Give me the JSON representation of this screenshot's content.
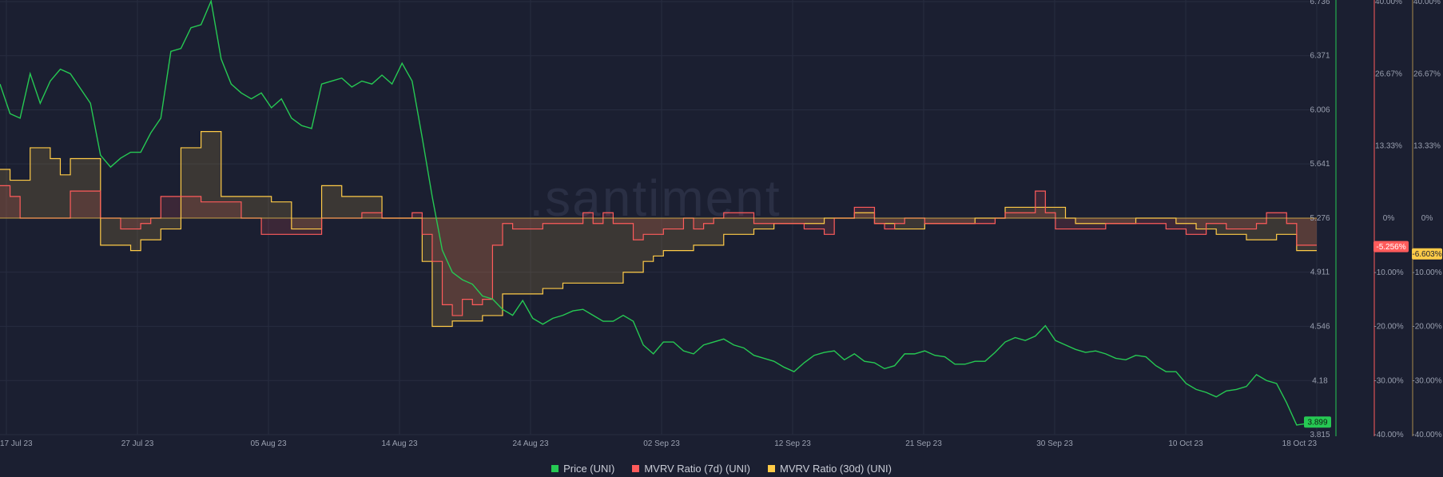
{
  "watermark": ".santiment",
  "legend": {
    "price": "Price (UNI)",
    "mvrv7": "MVRV Ratio (7d) (UNI)",
    "mvrv30": "MVRV Ratio (30d) (UNI)"
  },
  "colors": {
    "background": "#1b1f31",
    "price": "#26c953",
    "mvrv7": "#ff5b5b",
    "mvrv30": "#ffcb47",
    "grid": "#272c40"
  },
  "chart_data": {
    "type": "line",
    "x_tick_labels": [
      "17 Jul 23",
      "27 Jul 23",
      "05 Aug 23",
      "14 Aug 23",
      "24 Aug 23",
      "02 Sep 23",
      "12 Sep 23",
      "21 Sep 23",
      "30 Sep 23",
      "10 Oct 23",
      "18 Oct 23"
    ],
    "price_axis": {
      "ticks": [
        "6.736",
        "6.371",
        "6.006",
        "5.641",
        "5.276",
        "4.911",
        "4.546",
        "4.18",
        "3.815"
      ],
      "range": [
        3.815,
        6.736
      ],
      "current_label": "3.899"
    },
    "mvrv7_axis": {
      "ticks": [
        "40.00%",
        "26.67%",
        "13.33%",
        "0%",
        "-10.00%",
        "-20.00%",
        "-30.00%",
        "-40.00%"
      ],
      "current_label": "-5.256%"
    },
    "mvrv30_axis": {
      "ticks": [
        "40.00%",
        "26.67%",
        "13.33%",
        "0%",
        "-10.00%",
        "-20.00%",
        "-30.00%",
        "-40.00%"
      ],
      "current_label": "-6.603%"
    },
    "mvrv_range": [
      -40,
      40
    ],
    "series": [
      {
        "name": "Price (UNI)",
        "color": "#26c953",
        "values": [
          6.18,
          5.98,
          5.95,
          6.25,
          6.05,
          6.2,
          6.28,
          6.25,
          6.15,
          6.05,
          5.7,
          5.62,
          5.68,
          5.72,
          5.72,
          5.85,
          5.95,
          6.4,
          6.42,
          6.56,
          6.58,
          6.74,
          6.35,
          6.18,
          6.12,
          6.08,
          6.12,
          6.02,
          6.08,
          5.95,
          5.9,
          5.88,
          6.18,
          6.2,
          6.22,
          6.16,
          6.2,
          6.18,
          6.24,
          6.18,
          6.32,
          6.2,
          5.82,
          5.42,
          5.06,
          4.91,
          4.86,
          4.83,
          4.75,
          4.73,
          4.66,
          4.62,
          4.72,
          4.6,
          4.56,
          4.6,
          4.62,
          4.65,
          4.66,
          4.62,
          4.58,
          4.58,
          4.62,
          4.58,
          4.42,
          4.36,
          4.44,
          4.44,
          4.38,
          4.36,
          4.42,
          4.44,
          4.46,
          4.42,
          4.4,
          4.35,
          4.33,
          4.31,
          4.27,
          4.24,
          4.3,
          4.35,
          4.37,
          4.38,
          4.32,
          4.36,
          4.31,
          4.3,
          4.26,
          4.28,
          4.36,
          4.36,
          4.38,
          4.35,
          4.34,
          4.29,
          4.29,
          4.31,
          4.31,
          4.37,
          4.44,
          4.47,
          4.45,
          4.48,
          4.55,
          4.45,
          4.42,
          4.39,
          4.37,
          4.38,
          4.36,
          4.33,
          4.32,
          4.35,
          4.34,
          4.28,
          4.24,
          4.24,
          4.16,
          4.12,
          4.1,
          4.07,
          4.11,
          4.12,
          4.14,
          4.22,
          4.18,
          4.16,
          4.03,
          3.88,
          3.89,
          3.9
        ]
      },
      {
        "name": "MVRV Ratio (7d) (UNI)",
        "color": "#ff5b5b",
        "values": [
          6,
          4,
          0,
          0,
          0,
          0,
          0,
          5,
          5,
          5,
          0,
          0,
          -2,
          -2,
          -1,
          0,
          4,
          4,
          4,
          4,
          3,
          3,
          3,
          3,
          0,
          0,
          -3,
          -3,
          -3,
          -3,
          -3,
          -3,
          0,
          0,
          0,
          0,
          1,
          1,
          0,
          0,
          0,
          1,
          -3,
          -8,
          -16,
          -18,
          -15,
          -16,
          -15,
          -5,
          -1,
          -2,
          -2,
          -2,
          -1,
          -1,
          -1,
          -1,
          1,
          -1,
          1,
          -1,
          -1,
          -4,
          -3,
          -3,
          -2,
          -2,
          0,
          -2,
          -1,
          0,
          1,
          1,
          1,
          -1,
          -1,
          -1,
          -1,
          -1,
          -2,
          -2,
          -3,
          0,
          0,
          2,
          2,
          -1,
          -2,
          -1,
          0,
          0,
          -1,
          -1,
          -1,
          -1,
          -1,
          -1,
          -1,
          0,
          1,
          1,
          1,
          5,
          1,
          -2,
          -2,
          -2,
          -2,
          -2,
          -1,
          -1,
          -1,
          -1,
          -1,
          -1,
          -2,
          -2,
          -3,
          -3,
          -1,
          -1,
          -2,
          -2,
          -2,
          -1,
          1,
          1,
          -1,
          -5,
          -5,
          -5
        ]
      },
      {
        "name": "MVRV Ratio (30d) (UNI)",
        "color": "#ffcb47",
        "values": [
          9,
          7,
          7,
          13,
          13,
          11,
          8,
          11,
          11,
          11,
          -5,
          -5,
          -5,
          -6,
          -4,
          -4,
          -2,
          -2,
          13,
          13,
          16,
          16,
          4,
          4,
          4,
          4,
          4,
          3,
          3,
          -2,
          -2,
          -2,
          6,
          6,
          4,
          4,
          4,
          4,
          0,
          0,
          0,
          0,
          -8,
          -20,
          -20,
          -19,
          -19,
          -19,
          -18,
          -18,
          -14,
          -14,
          -14,
          -14,
          -13,
          -13,
          -12,
          -12,
          -12,
          -12,
          -12,
          -12,
          -10,
          -10,
          -8,
          -7,
          -6,
          -6,
          -6,
          -5,
          -5,
          -5,
          -3,
          -3,
          -3,
          -2,
          -2,
          -1,
          -1,
          -1,
          -1,
          -1,
          0,
          0,
          0,
          1,
          1,
          -1,
          -1,
          -2,
          -2,
          -2,
          -1,
          -1,
          -1,
          -1,
          -1,
          0,
          0,
          0,
          2,
          2,
          2,
          2,
          2,
          2,
          0,
          -1,
          -1,
          -1,
          -1,
          -1,
          -1,
          0,
          0,
          0,
          0,
          -1,
          -1,
          -2,
          -2,
          -3,
          -3,
          -3,
          -4,
          -4,
          -4,
          -3,
          -3,
          -6,
          -6,
          -6
        ]
      }
    ]
  }
}
